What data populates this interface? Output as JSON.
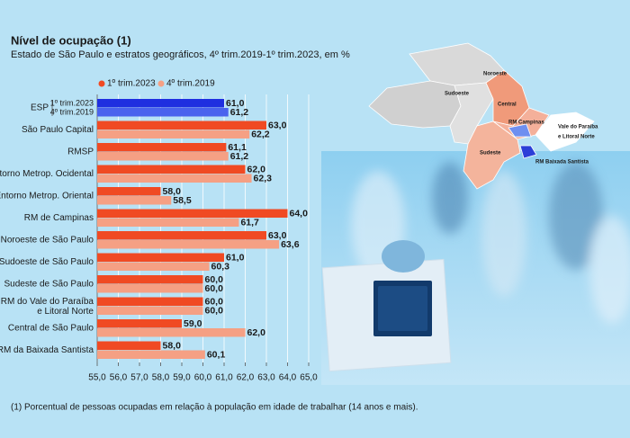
{
  "chart_data": {
    "type": "bar",
    "orientation": "horizontal",
    "title": "Nível de ocupação (1)",
    "subtitle": "Estado de São Paulo e estratos geográficos, 4º trim.2019-1º trim.2023, em %",
    "footnote": "(1) Porcentual de pessoas ocupadas em relação à população em idade de trabalhar (14 anos e mais).",
    "categories": [
      "ESP",
      "São Paulo Capital",
      "RMSP",
      "Entorno Metrop. Ocidental",
      "Entorno Metrop. Oriental",
      "RM de Campinas",
      "Noroeste de São Paulo",
      "Sudoeste de São Paulo",
      "Sudeste de São Paulo",
      "RM do Vale do Paraíba\ne Litoral Norte",
      "Central de São Paulo",
      "RM da Baixada Santista"
    ],
    "series": [
      {
        "name": "1º trim.2023",
        "color": "#f04a23",
        "highlight_color": "#1f2fe0",
        "values": [
          61.0,
          63.0,
          61.1,
          62.0,
          58.0,
          64.0,
          63.0,
          61.0,
          60.0,
          60.0,
          59.0,
          58.0
        ],
        "value_labels": [
          "61,0",
          "63,0",
          "61,1",
          "62,0",
          "58,0",
          "64,0",
          "63,0",
          "61,0",
          "60,0",
          "60,0",
          "59,0",
          "58,0"
        ]
      },
      {
        "name": "4º trim.2019",
        "color": "#f5a084",
        "highlight_color": "#4a63ee",
        "values": [
          61.2,
          62.2,
          61.2,
          62.3,
          58.5,
          61.7,
          63.6,
          60.3,
          60.0,
          60.0,
          62.0,
          60.1
        ],
        "value_labels": [
          "61,2",
          "62,2",
          "61,2",
          "62,3",
          "58,5",
          "61,7",
          "63,6",
          "60,3",
          "60,0",
          "60,0",
          "62,0",
          "60,1"
        ]
      }
    ],
    "xlim": [
      55,
      65
    ],
    "xticks": [
      {
        "value": 55,
        "label": "55,0"
      },
      {
        "value": 56,
        "label": "56,0"
      },
      {
        "value": 57,
        "label": "57,0"
      },
      {
        "value": 58,
        "label": "58,0"
      },
      {
        "value": 59,
        "label": "59,0"
      },
      {
        "value": 60,
        "label": "60,0"
      },
      {
        "value": 61,
        "label": "61,0"
      },
      {
        "value": 62,
        "label": "62,0"
      },
      {
        "value": 63,
        "label": "63,0"
      },
      {
        "value": 64,
        "label": "64,0"
      },
      {
        "value": 65,
        "label": "65,0"
      }
    ],
    "grid": true
  },
  "map": {
    "labels": [
      "Noroeste",
      "Central",
      "Sudoeste",
      "RM Campinas",
      "Vale do Paraíba\ne Litoral Norte",
      "Sudeste",
      "RM Baixada Santista"
    ]
  }
}
